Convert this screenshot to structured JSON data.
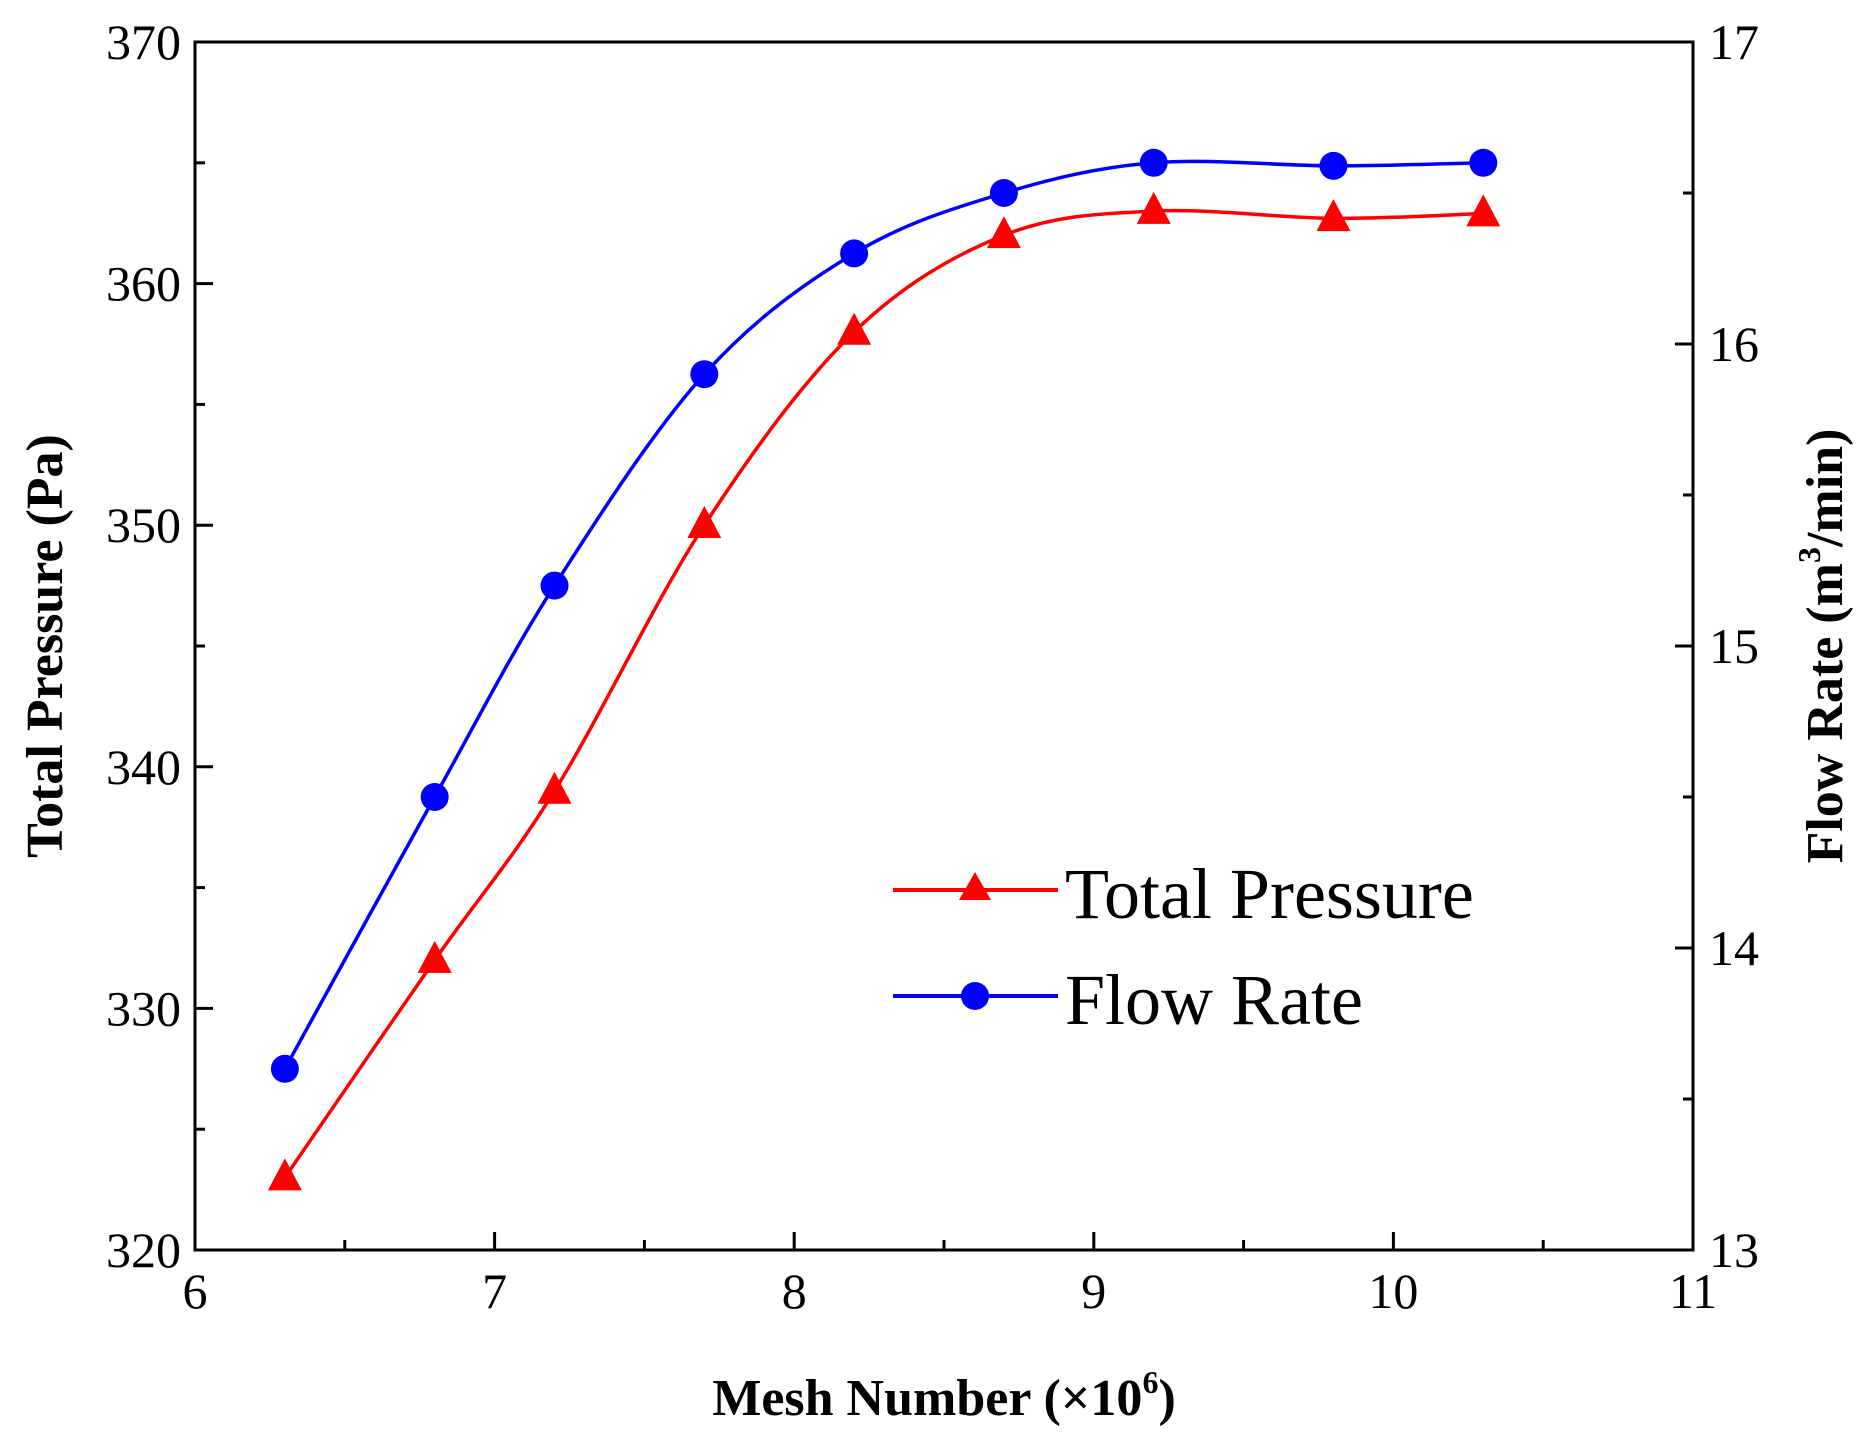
{
  "chart_data": {
    "type": "line",
    "x": [
      6.3,
      6.8,
      7.2,
      7.7,
      8.2,
      8.7,
      9.2,
      9.8,
      10.3
    ],
    "xlim": [
      6,
      11
    ],
    "x_ticks": [
      "6",
      "7",
      "8",
      "9",
      "10",
      "11"
    ],
    "xlabel": "Mesh Number (×10",
    "xlabel_sup": "6",
    "xlabel_end": ")",
    "grid": false,
    "legend_position": "lower-right",
    "series": [
      {
        "name": "Total Pressure",
        "axis": "left",
        "color": "#ff0000",
        "marker": "triangle",
        "values": [
          323,
          332,
          339,
          350,
          358,
          362,
          363,
          362.7,
          362.9
        ]
      },
      {
        "name": "Flow Rate",
        "axis": "right",
        "color": "#0000ff",
        "marker": "circle",
        "values": [
          13.6,
          14.5,
          15.2,
          15.9,
          16.3,
          16.5,
          16.6,
          16.59,
          16.6
        ]
      }
    ],
    "y_left": {
      "label": "Total Pressure (Pa)",
      "ylim": [
        320,
        370
      ],
      "ticks": [
        "320",
        "330",
        "340",
        "350",
        "360",
        "370"
      ]
    },
    "y_right": {
      "label_pre": "Flow Rate (m",
      "label_sup": "3",
      "label_post": "/min)",
      "ylim": [
        13,
        17
      ],
      "ticks": [
        "13",
        "14",
        "15",
        "16",
        "17"
      ]
    }
  }
}
